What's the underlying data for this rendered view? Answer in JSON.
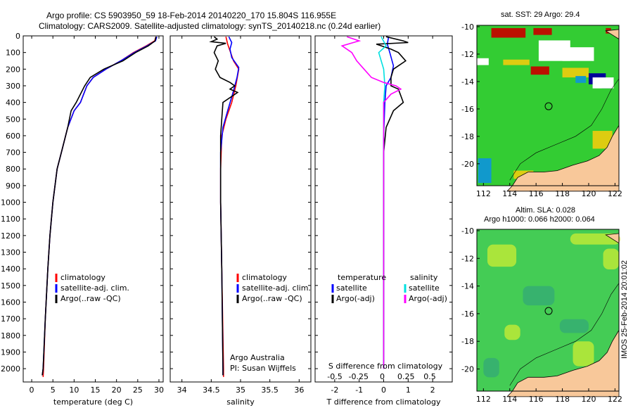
{
  "title_line1": "Argo profile: CS 5903950_59 18-Feb-2014 20140220_170 15.804S 116.955E",
  "title_line2": "Climatology: CARS2009. Satellite-adjusted climatology: synTS_20140218.nc (0.24d earlier)",
  "side_label": "IMOS 25-Feb-2014 20:01:02",
  "chart_data": [
    {
      "type": "line",
      "id": "temperature",
      "xlabel": "temperature (deg C)",
      "ylabel": "",
      "xlim": [
        -2,
        31
      ],
      "ylim": [
        2080,
        0
      ],
      "xticks": [
        0,
        5,
        10,
        15,
        20,
        25,
        30
      ],
      "yticks": [
        0,
        100,
        200,
        300,
        400,
        500,
        600,
        700,
        800,
        900,
        1000,
        1100,
        1200,
        1300,
        1400,
        1500,
        1600,
        1700,
        1800,
        1900,
        2000
      ],
      "legend": [
        "climatology",
        "satellite-adj. clim.",
        "Argo(..raw -QC)"
      ],
      "legend_location": "lower-center",
      "series": [
        {
          "name": "climatology",
          "color": "#ff0000",
          "points": [
            [
              29.3,
              5
            ],
            [
              29.0,
              30
            ],
            [
              27.0,
              60
            ],
            [
              24.0,
              100
            ],
            [
              21.0,
              150
            ],
            [
              17.5,
              200
            ],
            [
              14.5,
              250
            ],
            [
              13.0,
              300
            ],
            [
              11.5,
              400
            ],
            [
              10.0,
              450
            ],
            [
              8.5,
              550
            ],
            [
              7.0,
              700
            ],
            [
              6.0,
              800
            ],
            [
              5.0,
              1000
            ],
            [
              4.3,
              1200
            ],
            [
              3.8,
              1400
            ],
            [
              3.2,
              1700
            ],
            [
              2.8,
              2000
            ],
            [
              2.7,
              2050
            ]
          ]
        },
        {
          "name": "satellite-adj. clim.",
          "color": "#0000ff",
          "points": [
            [
              29.5,
              5
            ],
            [
              29.2,
              30
            ],
            [
              27.2,
              60
            ],
            [
              24.2,
              100
            ],
            [
              21.0,
              150
            ],
            [
              17.5,
              200
            ],
            [
              14.5,
              250
            ],
            [
              13.0,
              300
            ],
            [
              11.5,
              400
            ],
            [
              10.0,
              450
            ],
            [
              8.5,
              550
            ],
            [
              7.0,
              700
            ],
            [
              6.0,
              800
            ],
            [
              5.0,
              1000
            ],
            [
              4.3,
              1200
            ],
            [
              3.8,
              1400
            ],
            [
              3.2,
              1700
            ],
            [
              2.7,
              2000
            ],
            [
              2.5,
              2040
            ]
          ]
        },
        {
          "name": "Argo(..raw -QC)",
          "color": "#000000",
          "points": [
            [
              29.3,
              5
            ],
            [
              29.1,
              30
            ],
            [
              27.5,
              60
            ],
            [
              24.5,
              100
            ],
            [
              21.5,
              150
            ],
            [
              17.0,
              200
            ],
            [
              13.8,
              250
            ],
            [
              12.5,
              300
            ],
            [
              11.5,
              350
            ],
            [
              10.5,
              400
            ],
            [
              9.3,
              450
            ],
            [
              8.5,
              550
            ],
            [
              7.0,
              700
            ],
            [
              6.0,
              800
            ],
            [
              5.0,
              1000
            ],
            [
              4.3,
              1200
            ],
            [
              3.8,
              1400
            ],
            [
              3.2,
              1700
            ],
            [
              2.7,
              2000
            ],
            [
              2.5,
              2040
            ]
          ]
        }
      ]
    },
    {
      "type": "line",
      "id": "salinity",
      "xlabel": "salinity",
      "xlim": [
        33.8,
        36.2
      ],
      "ylim": [
        2080,
        0
      ],
      "xticks": [
        34,
        34.5,
        35,
        35.5,
        36
      ],
      "yticks": [
        0,
        100,
        200,
        300,
        400,
        500,
        600,
        700,
        800,
        900,
        1000,
        1100,
        1200,
        1300,
        1400,
        1500,
        1600,
        1700,
        1800,
        1900,
        2000
      ],
      "legend": [
        "climatology",
        "satellite-adj. clim.",
        "Argo(..raw -QC)"
      ],
      "legend_location": "lower-right",
      "annotation": [
        "Argo Australia",
        "PI: Susan Wijffels"
      ],
      "series": [
        {
          "name": "climatology",
          "color": "#ff0000",
          "points": [
            [
              34.75,
              5
            ],
            [
              34.78,
              50
            ],
            [
              34.88,
              150
            ],
            [
              34.97,
              200
            ],
            [
              34.92,
              300
            ],
            [
              34.85,
              400
            ],
            [
              34.75,
              500
            ],
            [
              34.68,
              600
            ],
            [
              34.66,
              800
            ],
            [
              34.66,
              1000
            ],
            [
              34.68,
              1400
            ],
            [
              34.71,
              2000
            ],
            [
              34.71,
              2050
            ]
          ]
        },
        {
          "name": "satellite-adj. clim.",
          "color": "#0000ff",
          "points": [
            [
              34.8,
              5
            ],
            [
              34.85,
              40
            ],
            [
              34.82,
              80
            ],
            [
              34.85,
              130
            ],
            [
              34.97,
              190
            ],
            [
              34.94,
              250
            ],
            [
              34.88,
              330
            ],
            [
              34.78,
              450
            ],
            [
              34.7,
              550
            ],
            [
              34.66,
              700
            ],
            [
              34.66,
              1000
            ],
            [
              34.68,
              1400
            ],
            [
              34.7,
              2000
            ],
            [
              34.7,
              2040
            ]
          ]
        },
        {
          "name": "Argo(..raw -QC)",
          "color": "#000000",
          "points": [
            [
              34.55,
              5
            ],
            [
              34.6,
              20
            ],
            [
              34.5,
              35
            ],
            [
              34.75,
              45
            ],
            [
              34.6,
              60
            ],
            [
              34.55,
              100
            ],
            [
              34.62,
              150
            ],
            [
              34.57,
              200
            ],
            [
              34.65,
              250
            ],
            [
              34.82,
              280
            ],
            [
              34.9,
              300
            ],
            [
              34.82,
              320
            ],
            [
              34.95,
              340
            ],
            [
              34.7,
              400
            ],
            [
              34.68,
              500
            ],
            [
              34.66,
              600
            ],
            [
              34.66,
              800
            ],
            [
              34.66,
              1000
            ],
            [
              34.68,
              1400
            ],
            [
              34.7,
              2000
            ],
            [
              34.7,
              2040
            ]
          ]
        }
      ]
    },
    {
      "type": "line",
      "id": "difference",
      "xlabel": "T difference from climatology",
      "xlabel_top": "S difference from climatology",
      "xlim": [
        -2.8,
        2.8
      ],
      "ylim": [
        2080,
        0
      ],
      "xticks": [
        -2,
        -1,
        0,
        1,
        2
      ],
      "xticks_top": [
        -0.5,
        -0.25,
        0,
        0.25,
        0.5
      ],
      "yticks": [
        0,
        100,
        200,
        300,
        400,
        500,
        600,
        700,
        800,
        900,
        1000,
        1100,
        1200,
        1300,
        1400,
        1500,
        1600,
        1700,
        1800,
        1900,
        2000
      ],
      "legend": [
        "temperature",
        "satellite",
        "Argo(-adj)",
        "salinity",
        "satellite",
        "Argo(-adj)"
      ],
      "legend_location": "lower-center",
      "series": [
        {
          "name": "satellite",
          "color": "#0000ff",
          "points": [
            [
              0.2,
              5
            ],
            [
              0.15,
              50
            ],
            [
              0.25,
              100
            ],
            [
              0.4,
              180
            ],
            [
              0.3,
              250
            ],
            [
              0.1,
              300
            ],
            [
              0.05,
              400
            ],
            [
              0.0,
              600
            ],
            [
              0.0,
              1000
            ],
            [
              0.0,
              2000
            ]
          ]
        },
        {
          "name": "Argo(-adj)",
          "color": "#000000",
          "points": [
            [
              0.1,
              5
            ],
            [
              0.8,
              30
            ],
            [
              1.0,
              40
            ],
            [
              -0.3,
              50
            ],
            [
              0.3,
              80
            ],
            [
              0.6,
              100
            ],
            [
              0.9,
              150
            ],
            [
              0.4,
              200
            ],
            [
              0.3,
              250
            ],
            [
              0.3,
              300
            ],
            [
              0.6,
              320
            ],
            [
              0.8,
              400
            ],
            [
              0.4,
              450
            ],
            [
              0.1,
              550
            ],
            [
              0.0,
              700
            ],
            [
              0.0,
              1000
            ],
            [
              0.0,
              2000
            ]
          ]
        },
        {
          "name": "satellite",
          "color": "#00e0e0",
          "points": [
            [
              -0.1,
              5
            ],
            [
              0.1,
              60
            ],
            [
              -0.2,
              100
            ],
            [
              0.0,
              200
            ],
            [
              0.05,
              300
            ],
            [
              0.0,
              400
            ],
            [
              0.0,
              1000
            ],
            [
              0.0,
              2000
            ]
          ]
        },
        {
          "name": "Argo(-adj)",
          "color": "#ff00ff",
          "points": [
            [
              -1.5,
              5
            ],
            [
              -1.0,
              30
            ],
            [
              -1.7,
              60
            ],
            [
              -1.3,
              100
            ],
            [
              -1.1,
              150
            ],
            [
              -0.8,
              200
            ],
            [
              -0.5,
              250
            ],
            [
              0.0,
              280
            ],
            [
              0.5,
              300
            ],
            [
              0.7,
              320
            ],
            [
              0.3,
              350
            ],
            [
              0.0,
              400
            ],
            [
              0.0,
              500
            ],
            [
              0.0,
              1000
            ],
            [
              0.0,
              2000
            ]
          ]
        }
      ]
    },
    {
      "type": "heatmap",
      "id": "sst-map",
      "title": "sat. SST: 29 Argo: 29.4",
      "xlim": [
        111.5,
        122.3
      ],
      "ylim": [
        -21.6,
        -9.9
      ],
      "xticks": [
        112,
        114,
        116,
        118,
        120,
        122
      ],
      "yticks": [
        -10,
        -12,
        -14,
        -16,
        -18,
        -20
      ],
      "marker": {
        "lon": 116.955,
        "lat": -15.804
      },
      "colors": {
        "land": "#f8c89a",
        "main": "#33cc33",
        "warm": "#ddcc11",
        "hot": "#bb1100",
        "cool": "#1199cc",
        "cold": "#000099"
      }
    },
    {
      "type": "heatmap",
      "id": "sla-map",
      "title": "Altim. SLA: 0.028",
      "subtitle": "Argo h1000: 0.066 h2000: 0.064",
      "xlim": [
        111.5,
        122.3
      ],
      "ylim": [
        -21.6,
        -9.9
      ],
      "xticks": [
        112,
        114,
        116,
        118,
        120,
        122
      ],
      "yticks": [
        -10,
        -12,
        -14,
        -16,
        -18,
        -20
      ],
      "marker": {
        "lon": 116.955,
        "lat": -15.804
      },
      "colors": {
        "land": "#f8c89a",
        "high": "#ccee33",
        "mid": "#44cc55",
        "low": "#33aa77"
      }
    }
  ]
}
